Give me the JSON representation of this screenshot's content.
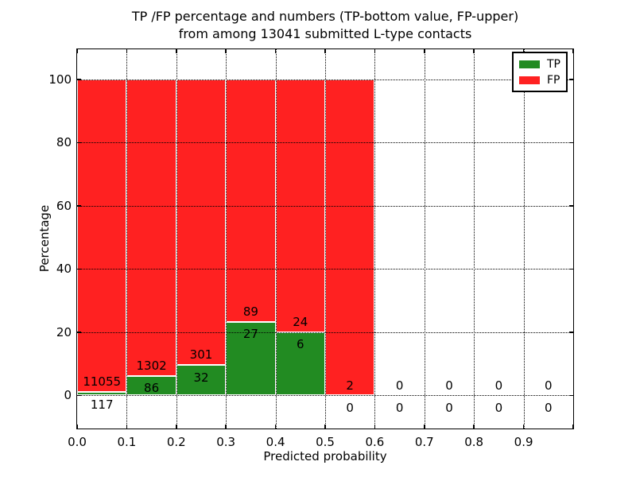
{
  "chart_data": {
    "type": "bar",
    "stacked": true,
    "title_line1": "TP /FP percentage and numbers (TP-bottom value, FP-upper)",
    "title_line2": "from among 13041 submitted L-type contacts",
    "total_submitted_contacts": 13041,
    "xlabel": "Predicted probability",
    "ylabel": "Percentage",
    "categories": [
      "0.0-0.1",
      "0.1-0.2",
      "0.2-0.3",
      "0.3-0.4",
      "0.4-0.5",
      "0.5-0.6",
      "0.6-0.7",
      "0.7-0.8",
      "0.8-0.9",
      "0.9-1.0"
    ],
    "bin_edges": [
      0.0,
      0.1,
      0.2,
      0.3,
      0.4,
      0.5,
      0.6,
      0.7,
      0.8,
      0.9,
      1.0
    ],
    "series": [
      {
        "name": "TP",
        "color": "#228b22",
        "counts": [
          117,
          86,
          32,
          27,
          6,
          0,
          0,
          0,
          0,
          0
        ],
        "pct": [
          1.05,
          6.2,
          9.61,
          23.28,
          20.0,
          0.0,
          0,
          0,
          0,
          0
        ]
      },
      {
        "name": "FP",
        "color": "#ff2121",
        "counts": [
          11055,
          1302,
          301,
          89,
          24,
          2,
          0,
          0,
          0,
          0
        ],
        "pct": [
          98.95,
          93.8,
          90.39,
          76.72,
          80.0,
          100.0,
          0,
          0,
          0,
          0
        ]
      }
    ],
    "x_tick_labels": [
      "0.0",
      "0.1",
      "0.2",
      "0.3",
      "0.4",
      "0.5",
      "0.6",
      "0.7",
      "0.8",
      "0.9"
    ],
    "y_tick_values": [
      0,
      20,
      40,
      60,
      80,
      100
    ],
    "xlim": [
      0.0,
      1.0
    ],
    "ylim": [
      -10.5,
      109.5
    ],
    "grid": true,
    "grid_style": "dotted",
    "bar_edge_color": "#ffffff",
    "legend_position": "upper right",
    "label_note": "TP-bottom value, FP-upper"
  }
}
